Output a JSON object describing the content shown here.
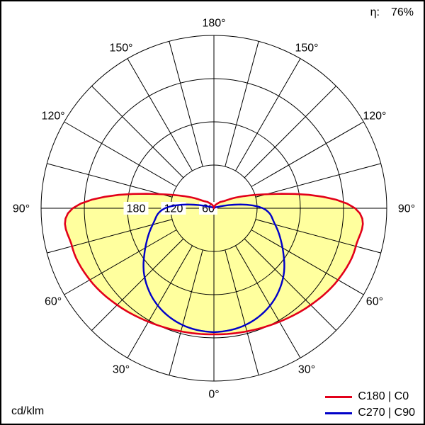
{
  "header": {
    "eta_label": "η:",
    "eta_value": "76%"
  },
  "footer": {
    "unit_label": "cd/klm"
  },
  "legend": [
    {
      "label": "C180 | C0",
      "color": "#e2001a"
    },
    {
      "label": "C270 | C90",
      "color": "#0000c8"
    }
  ],
  "chart_data": {
    "type": "line",
    "subtype": "polar-intensity-distribution",
    "unit": "cd/klm",
    "efficiency_percent": 76,
    "rmax": 240,
    "rings": [
      60,
      120,
      180,
      240
    ],
    "scale_labels": [
      "180",
      "120",
      "60"
    ],
    "angle_step_deg": 15,
    "angle_labels_deg": [
      0,
      30,
      60,
      90,
      120,
      150,
      180
    ],
    "gamma_deg": [
      0,
      15,
      30,
      45,
      60,
      75,
      90,
      105,
      120,
      135,
      150,
      165,
      180
    ],
    "series": [
      {
        "name": "C180 | C0",
        "color": "#e2001a",
        "fill": "#ffff9e",
        "values": [
          175,
          177,
          182,
          190,
          199,
          204,
          196,
          75,
          25,
          12,
          6,
          3,
          0
        ]
      },
      {
        "name": "C270 | C90",
        "color": "#0000c8",
        "fill": null,
        "values": [
          172,
          168,
          156,
          136,
          110,
          88,
          68,
          12,
          3,
          0,
          0,
          0,
          0
        ]
      }
    ]
  }
}
